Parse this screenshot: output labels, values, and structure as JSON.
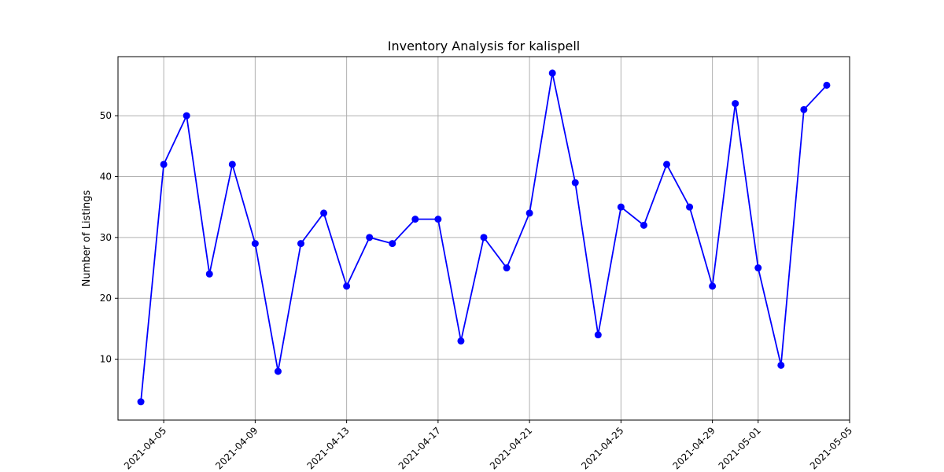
{
  "chart_data": {
    "type": "line",
    "title": "Inventory Analysis for kalispell",
    "xlabel": "",
    "ylabel": "Number of Listings",
    "grid": true,
    "line_color": "#0000ff",
    "marker": "circle",
    "x": [
      "2021-04-04",
      "2021-04-05",
      "2021-04-06",
      "2021-04-07",
      "2021-04-08",
      "2021-04-09",
      "2021-04-10",
      "2021-04-11",
      "2021-04-12",
      "2021-04-13",
      "2021-04-14",
      "2021-04-15",
      "2021-04-16",
      "2021-04-17",
      "2021-04-18",
      "2021-04-19",
      "2021-04-20",
      "2021-04-21",
      "2021-04-22",
      "2021-04-23",
      "2021-04-24",
      "2021-04-25",
      "2021-04-26",
      "2021-04-27",
      "2021-04-28",
      "2021-04-29",
      "2021-04-30",
      "2021-05-01",
      "2021-05-02",
      "2021-05-03",
      "2021-05-04"
    ],
    "y": [
      3,
      42,
      50,
      24,
      42,
      29,
      8,
      29,
      34,
      22,
      30,
      29,
      33,
      33,
      13,
      30,
      25,
      34,
      57,
      39,
      14,
      35,
      32,
      42,
      35,
      22,
      52,
      25,
      9,
      51,
      55
    ],
    "xlim": [
      "2021-04-03",
      "2021-05-05"
    ],
    "ylim": [
      0,
      59.7
    ],
    "x_ticks": [
      "2021-04-05",
      "2021-04-09",
      "2021-04-13",
      "2021-04-17",
      "2021-04-21",
      "2021-04-25",
      "2021-04-29",
      "2021-05-01",
      "2021-05-05"
    ],
    "y_ticks": [
      10,
      20,
      30,
      40,
      50
    ]
  }
}
